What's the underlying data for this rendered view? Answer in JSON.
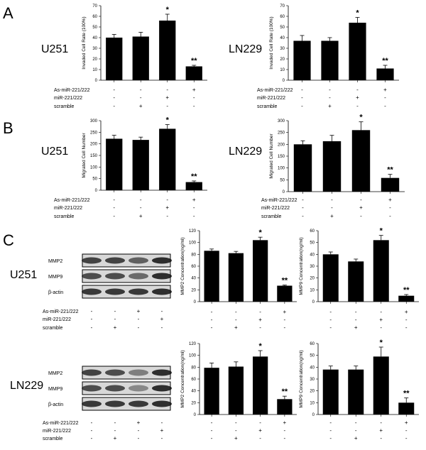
{
  "panels": {
    "A": "A",
    "B": "B",
    "C": "C"
  },
  "treatments": {
    "charts": [
      "As-miR-221/222",
      "miR-221/222",
      "scramble"
    ],
    "blots": [
      "As-miR-221/222",
      "miR-221/222",
      "scramble"
    ]
  },
  "signs": {
    "charts": [
      [
        "-",
        "-",
        "-",
        "+"
      ],
      [
        "-",
        "-",
        "+",
        "-"
      ],
      [
        "-",
        "+",
        "-",
        "-"
      ]
    ],
    "blots": [
      [
        "-",
        "-",
        "+",
        "-"
      ],
      [
        "-",
        "-",
        "-",
        "+"
      ],
      [
        "-",
        "+",
        "-",
        "-"
      ]
    ]
  },
  "blot_labels": [
    "MMP2",
    "MMP9",
    "β-actin"
  ],
  "cell_lines": [
    "U251",
    "LN229"
  ],
  "chart_data": [
    {
      "id": "A-U251",
      "type": "bar",
      "cell_line": "U251",
      "ylabel": "Invaded Cell Rate (100%)",
      "ylim": [
        0,
        70
      ],
      "yticks": [
        0,
        10,
        20,
        30,
        40,
        50,
        60,
        70
      ],
      "values": [
        40,
        41,
        56,
        13
      ],
      "errors": [
        3,
        4,
        6,
        1
      ],
      "significance": [
        "",
        "",
        "*",
        "**"
      ]
    },
    {
      "id": "A-LN229",
      "type": "bar",
      "cell_line": "LN229",
      "ylabel": "Invaded Cell Rate (100%)",
      "ylim": [
        0,
        70
      ],
      "yticks": [
        0,
        10,
        20,
        30,
        40,
        50,
        60,
        70
      ],
      "values": [
        37,
        37,
        54,
        11
      ],
      "errors": [
        5,
        3,
        5,
        3
      ],
      "significance": [
        "",
        "",
        "*",
        "**"
      ]
    },
    {
      "id": "B-U251",
      "type": "bar",
      "cell_line": "U251",
      "ylabel": "Migrated Cell Number",
      "ylim": [
        0,
        300
      ],
      "yticks": [
        0,
        50,
        100,
        150,
        200,
        250,
        300
      ],
      "values": [
        222,
        217,
        265,
        35
      ],
      "errors": [
        15,
        12,
        18,
        5
      ],
      "significance": [
        "",
        "",
        "*",
        "**"
      ]
    },
    {
      "id": "B-LN229",
      "type": "bar",
      "cell_line": "LN229",
      "ylabel": "Migrated Cell Number",
      "ylim": [
        0,
        300
      ],
      "yticks": [
        0,
        50,
        100,
        150,
        200,
        250,
        300
      ],
      "values": [
        200,
        213,
        260,
        58
      ],
      "errors": [
        15,
        25,
        35,
        15
      ],
      "significance": [
        "",
        "",
        "*",
        "**"
      ]
    },
    {
      "id": "C-U251-MMP2",
      "type": "bar",
      "cell_line": "U251",
      "ylabel": "MMP2 Concentration(ng/ml)",
      "ylim": [
        0,
        120
      ],
      "yticks": [
        0,
        20,
        40,
        60,
        80,
        100,
        120
      ],
      "values": [
        86,
        82,
        104,
        27
      ],
      "errors": [
        3,
        3,
        5,
        1
      ],
      "significance": [
        "",
        "",
        "*",
        "**"
      ]
    },
    {
      "id": "C-U251-MMP9",
      "type": "bar",
      "cell_line": "U251",
      "ylabel": "MMP9 Concentration(ng/ml)",
      "ylim": [
        0,
        60
      ],
      "yticks": [
        0,
        10,
        20,
        30,
        40,
        50,
        60
      ],
      "values": [
        40,
        34,
        52,
        5
      ],
      "errors": [
        2,
        2,
        4,
        1
      ],
      "significance": [
        "",
        "",
        "*",
        "**"
      ]
    },
    {
      "id": "C-LN229-MMP2",
      "type": "bar",
      "cell_line": "LN229",
      "ylabel": "MMP2 Concentration(ng/ml)",
      "ylim": [
        0,
        120
      ],
      "yticks": [
        0,
        20,
        40,
        60,
        80,
        100,
        120
      ],
      "values": [
        79,
        81,
        98,
        26
      ],
      "errors": [
        8,
        8,
        10,
        5
      ],
      "significance": [
        "",
        "",
        "*",
        "**"
      ]
    },
    {
      "id": "C-LN229-MMP9",
      "type": "bar",
      "cell_line": "LN229",
      "ylabel": "MMP9 Concentration(ng/ml)",
      "ylim": [
        0,
        60
      ],
      "yticks": [
        0,
        10,
        20,
        30,
        40,
        50,
        60
      ],
      "values": [
        38,
        38,
        49,
        10
      ],
      "errors": [
        3,
        3,
        8,
        4
      ],
      "significance": [
        "",
        "",
        "*",
        "**"
      ]
    }
  ]
}
